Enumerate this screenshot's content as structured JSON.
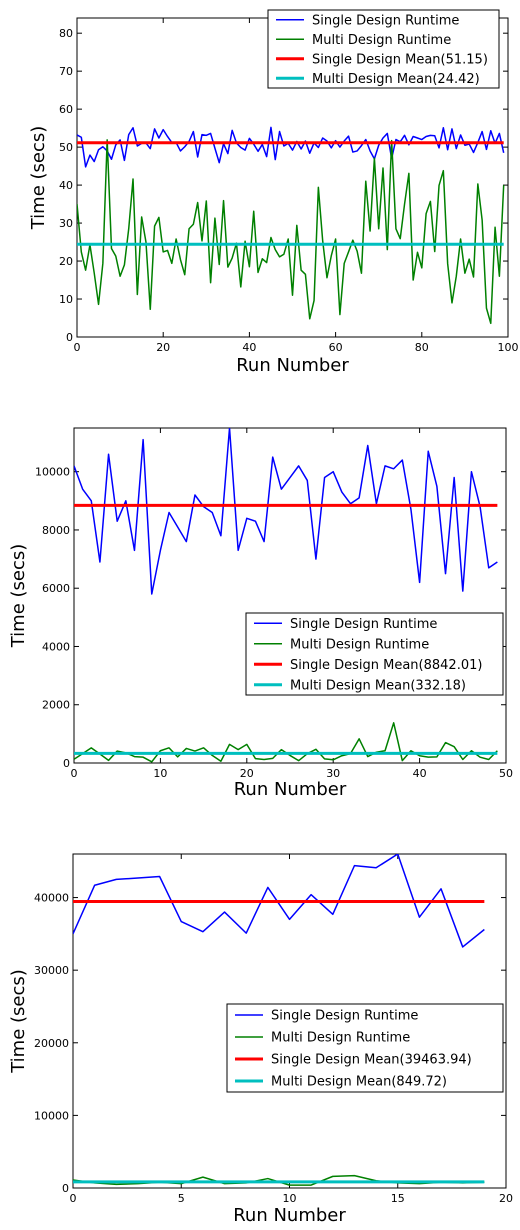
{
  "chart_data": [
    {
      "type": "line",
      "title": "",
      "xlabel": "Run Number",
      "ylabel": "Time (secs)",
      "xlim": [
        0,
        100
      ],
      "ylim": [
        0,
        84
      ],
      "xticks": [
        0,
        20,
        40,
        60,
        80,
        100
      ],
      "yticks": [
        0,
        10,
        20,
        30,
        40,
        50,
        60,
        70,
        80
      ],
      "grid": false,
      "legend_position": "top-right",
      "x": [
        0,
        1,
        2,
        3,
        4,
        5,
        6,
        7,
        8,
        9,
        10,
        11,
        12,
        13,
        14,
        15,
        16,
        17,
        18,
        19,
        20,
        21,
        22,
        23,
        24,
        25,
        26,
        27,
        28,
        29,
        30,
        31,
        32,
        33,
        34,
        35,
        36,
        37,
        38,
        39,
        40,
        41,
        42,
        43,
        44,
        45,
        46,
        47,
        48,
        49,
        50,
        51,
        52,
        53,
        54,
        55,
        56,
        57,
        58,
        59,
        60,
        61,
        62,
        63,
        64,
        65,
        66,
        67,
        68,
        69,
        70,
        71,
        72,
        73,
        74,
        75,
        76,
        77,
        78,
        79,
        80,
        81,
        82,
        83,
        84,
        85,
        86,
        87,
        88,
        89,
        90,
        91,
        92,
        93,
        94,
        95,
        96,
        97,
        98,
        99
      ],
      "series": [
        {
          "name": "Single Design Runtime",
          "color": "#0000ff",
          "values": [
            53.2,
            52.6,
            44.8,
            47.9,
            46.2,
            49.3,
            50.1,
            49.0,
            46.8,
            50.6,
            51.9,
            46.5,
            53.3,
            55.1,
            50.3,
            51.0,
            51.1,
            49.6,
            54.8,
            52.4,
            54.6,
            52.8,
            51.2,
            51.2,
            49.0,
            50.1,
            51.5,
            54.1,
            47.4,
            53.3,
            53.1,
            53.6,
            49.7,
            45.9,
            50.9,
            48.3,
            54.4,
            51.1,
            49.9,
            49.2,
            52.3,
            50.8,
            48.9,
            50.7,
            47.5,
            55.2,
            46.7,
            54.1,
            50.3,
            51.0,
            49.2,
            51.5,
            49.5,
            51.6,
            48.4,
            51.1,
            49.9,
            52.4,
            51.6,
            49.8,
            51.7,
            50.0,
            51.6,
            52.9,
            48.7,
            49.0,
            50.4,
            52.0,
            49.0,
            46.9,
            50.5,
            52.4,
            53.6,
            47.0,
            52.0,
            51.4,
            53.1,
            50.6,
            52.8,
            52.4,
            52.0,
            52.8,
            53.1,
            53.0,
            49.8,
            55.1,
            49.3,
            54.8,
            49.6,
            53.2,
            50.5,
            50.8,
            48.6,
            51.2,
            54.1,
            49.4,
            54.3,
            51.0,
            53.6,
            48.5
          ],
          "values_note_removed": true
        },
        {
          "name": "Multi Design Runtime",
          "color": "#008000",
          "values": [
            35.0,
            22.4,
            17.6,
            24.3,
            16.8,
            8.6,
            19.4,
            51.9,
            23.3,
            21.3,
            16.0,
            19.0,
            28.5,
            41.6,
            11.2,
            31.6,
            25.0,
            7.3,
            29.2,
            31.5,
            22.4,
            22.8,
            19.4,
            25.8,
            20.4,
            16.4,
            28.5,
            29.7,
            35.4,
            25.3,
            35.8,
            14.3,
            31.3,
            19.1,
            35.9,
            18.4,
            20.8,
            24.7,
            13.2,
            25.2,
            18.5,
            33.1,
            17.0,
            20.6,
            19.6,
            26.2,
            23.0,
            21.1,
            21.8,
            25.8,
            11.0,
            29.4,
            17.6,
            16.5,
            4.8,
            9.6,
            39.4,
            25.4,
            15.6,
            21.4,
            25.8,
            5.9,
            19.4,
            22.4,
            25.5,
            22.6,
            16.8,
            41.0,
            27.9,
            47.1,
            28.5,
            44.5,
            23.0,
            51.7,
            28.5,
            25.9,
            35.0,
            43.1,
            15.0,
            22.3,
            18.2,
            32.5,
            35.7,
            22.5,
            39.9,
            43.8,
            19.3,
            9.0,
            16.0,
            25.8,
            16.8,
            20.5,
            15.8,
            40.3,
            30.8,
            7.6,
            3.6,
            28.9,
            16.0,
            40.0
          ]
        },
        {
          "name": "Single Design Mean(51.15)",
          "color": "#ff0000",
          "constant": 51.15
        },
        {
          "name": "Multi Design Mean(24.42)",
          "color": "#00bfbf",
          "constant": 24.42
        }
      ]
    },
    {
      "type": "line",
      "title": "",
      "xlabel": "Run Number",
      "ylabel": "Time (secs)",
      "xlim": [
        0,
        50
      ],
      "ylim": [
        0,
        11500
      ],
      "xticks": [
        0,
        10,
        20,
        30,
        40,
        50
      ],
      "yticks": [
        0,
        2000,
        4000,
        6000,
        8000,
        10000
      ],
      "grid": false,
      "legend_position": "center-right",
      "x": [
        0,
        1,
        2,
        3,
        4,
        5,
        6,
        7,
        8,
        9,
        10,
        11,
        12,
        13,
        14,
        15,
        16,
        17,
        18,
        19,
        20,
        21,
        22,
        23,
        24,
        25,
        26,
        27,
        28,
        29,
        30,
        31,
        32,
        33,
        34,
        35,
        36,
        37,
        38,
        39,
        40,
        41,
        42,
        43,
        44,
        45,
        46,
        47,
        48,
        49
      ],
      "series": [
        {
          "name": "Single Design Runtime",
          "color": "#0000ff",
          "values": [
            10200,
            9400,
            9000,
            6900,
            10600,
            8300,
            9000,
            7300,
            11100,
            5800,
            7300,
            8600,
            8100,
            7600,
            9200,
            8800,
            8600,
            7800,
            11500,
            7300,
            8400,
            8300,
            7600,
            10500,
            9400,
            9800,
            10200,
            9700,
            7000,
            9800,
            10000,
            9300,
            8900,
            9100,
            10900,
            8900,
            10200,
            10100,
            10400,
            8700,
            6200,
            10700,
            9500,
            6500,
            9800,
            5900,
            10000,
            8800,
            6700,
            6900
          ]
        },
        {
          "name": "Multi Design Runtime",
          "color": "#008000",
          "values": [
            130,
            320,
            520,
            310,
            90,
            410,
            350,
            220,
            200,
            40,
            420,
            520,
            210,
            500,
            410,
            520,
            260,
            60,
            640,
            460,
            640,
            150,
            120,
            160,
            460,
            260,
            80,
            320,
            470,
            140,
            110,
            250,
            320,
            830,
            220,
            370,
            420,
            1380,
            80,
            420,
            250,
            200,
            210,
            700,
            560,
            120,
            420,
            200,
            120,
            420
          ]
        },
        {
          "name": "Single Design Mean(8842.01)",
          "color": "#ff0000",
          "constant": 8842.01
        },
        {
          "name": "Multi Design Mean(332.18)",
          "color": "#00bfbf",
          "constant": 332.18
        }
      ]
    },
    {
      "type": "line",
      "title": "",
      "xlabel": "Run Number",
      "ylabel": "Time (secs)",
      "xlim": [
        0,
        20
      ],
      "ylim": [
        0,
        46000
      ],
      "xticks": [
        0,
        5,
        10,
        15,
        20
      ],
      "yticks": [
        0,
        10000,
        20000,
        30000,
        40000
      ],
      "grid": false,
      "legend_position": "center-right",
      "x": [
        0,
        1,
        2,
        3,
        4,
        5,
        6,
        7,
        8,
        9,
        10,
        11,
        12,
        13,
        14,
        15,
        16,
        17,
        18,
        19
      ],
      "series": [
        {
          "name": "Single Design Runtime",
          "color": "#0000ff",
          "values": [
            35000,
            41700,
            42500,
            42700,
            42900,
            36700,
            35300,
            38000,
            35100,
            41400,
            37000,
            40400,
            37700,
            44400,
            44100,
            46000,
            37300,
            41200,
            33200,
            35600
          ]
        },
        {
          "name": "Multi Design Runtime",
          "color": "#008000",
          "values": [
            1100,
            700,
            500,
            600,
            800,
            600,
            1500,
            600,
            700,
            1300,
            400,
            400,
            1600,
            1700,
            1000,
            700,
            600,
            800,
            700,
            800
          ]
        },
        {
          "name": "Single Design Mean(39463.94)",
          "color": "#ff0000",
          "constant": 39463.94
        },
        {
          "name": "Multi Design Mean(849.72)",
          "color": "#00bfbf",
          "constant": 849.72
        }
      ]
    }
  ]
}
